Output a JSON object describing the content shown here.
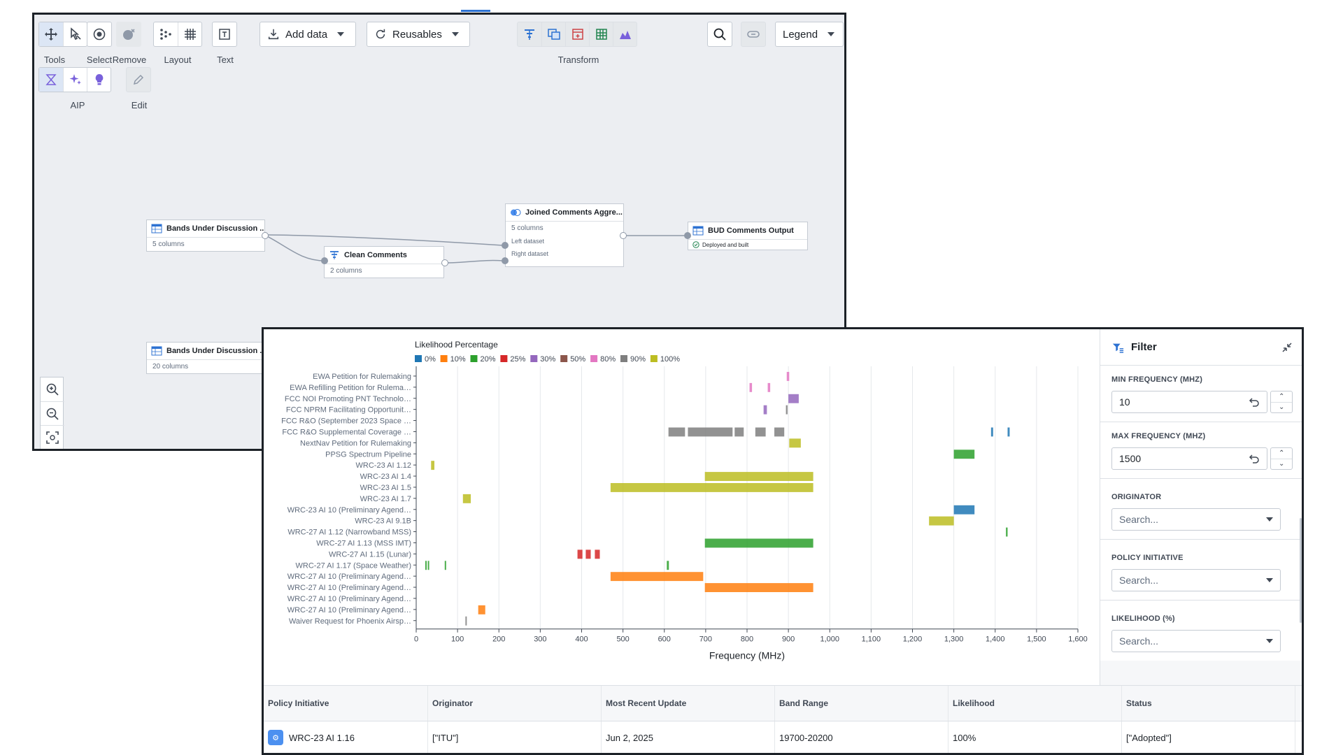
{
  "toolbar": {
    "groups": [
      {
        "label": "Tools"
      },
      {
        "label": "Select"
      },
      {
        "label": "Remove"
      },
      {
        "label": "Layout"
      },
      {
        "label": "Text"
      },
      {
        "label": "Transform"
      },
      {
        "label": "AIP"
      },
      {
        "label": "Edit"
      }
    ],
    "add_data": "Add data",
    "reusables": "Reusables",
    "legend": "Legend"
  },
  "graph": {
    "nodes": [
      {
        "id": "bands1",
        "title": "Bands Under Discussion ...",
        "sub": "5 columns"
      },
      {
        "id": "clean",
        "title": "Clean Comments",
        "sub": "2 columns"
      },
      {
        "id": "joined",
        "title": "Joined Comments Aggre...",
        "sub": "5 columns",
        "ports": [
          "Left dataset",
          "Right dataset"
        ]
      },
      {
        "id": "output",
        "title": "BUD Comments Output",
        "sub": "Deployed and built"
      },
      {
        "id": "bands2",
        "title": "Bands Under Discussion ...",
        "sub": "20 columns"
      }
    ]
  },
  "chart_data": {
    "type": "bar",
    "orientation": "horizontal-ranges",
    "legend_title": "Likelihood Percentage",
    "xlabel": "Frequency (MHz)",
    "xlim": [
      0,
      1600
    ],
    "xticks": [
      "0",
      "100",
      "200",
      "300",
      "400",
      "500",
      "600",
      "700",
      "800",
      "900",
      "1,000",
      "1,100",
      "1,200",
      "1,300",
      "1,400",
      "1,500",
      "1,600"
    ],
    "legend": [
      {
        "label": "0%",
        "color": "#1f77b4"
      },
      {
        "label": "10%",
        "color": "#ff7f0e"
      },
      {
        "label": "20%",
        "color": "#2ca02c"
      },
      {
        "label": "25%",
        "color": "#d62728"
      },
      {
        "label": "30%",
        "color": "#9467bd"
      },
      {
        "label": "50%",
        "color": "#8c564b"
      },
      {
        "label": "80%",
        "color": "#e377c2"
      },
      {
        "label": "90%",
        "color": "#7f7f7f"
      },
      {
        "label": "100%",
        "color": "#bcbd22"
      }
    ],
    "categories": [
      "EWA Petition for Rulemaking",
      "EWA Refilling Petition for Rulema…",
      "FCC NOI Promoting PNT Technolo…",
      "FCC NPRM Facilitating Opportunit…",
      "FCC R&O (September 2023 Space …",
      "FCC R&O Supplemental Coverage …",
      "NextNav Petition for Rulemaking",
      "PPSG Spectrum Pipeline",
      "WRC-23 AI 1.12",
      "WRC-23 AI 1.4",
      "WRC-23 AI 1.5",
      "WRC-23 AI 1.7",
      "WRC-23 AI 10 (Preliminary Agend…",
      "WRC-23 AI 9.1B",
      "WRC-27 AI 1.12 (Narrowband MSS)",
      "WRC-27 AI 1.13 (MSS IMT)",
      "WRC-27 AI 1.15 (Lunar)",
      "WRC-27 AI 1.17 (Space Weather)",
      "WRC-27 AI 10 (Preliminary Agend…",
      "WRC-27 AI 10 (Preliminary Agend…",
      "WRC-27 AI 10 (Preliminary Agend…",
      "WRC-27 AI 10 (Preliminary Agend…",
      "Waiver Request for Phoenix Airsp…"
    ],
    "ranges": [
      {
        "row": 0,
        "start": 896,
        "end": 902,
        "likelihood": "80%"
      },
      {
        "row": 1,
        "start": 806,
        "end": 812,
        "likelihood": "80%"
      },
      {
        "row": 1,
        "start": 850,
        "end": 856,
        "likelihood": "80%"
      },
      {
        "row": 2,
        "start": 900,
        "end": 925,
        "likelihood": "30%"
      },
      {
        "row": 3,
        "start": 840,
        "end": 848,
        "likelihood": "30%"
      },
      {
        "row": 3,
        "start": 894,
        "end": 898,
        "likelihood": "90%"
      },
      {
        "row": 5,
        "start": 610,
        "end": 650,
        "likelihood": "90%"
      },
      {
        "row": 5,
        "start": 657,
        "end": 765,
        "likelihood": "90%"
      },
      {
        "row": 5,
        "start": 770,
        "end": 792,
        "likelihood": "90%"
      },
      {
        "row": 5,
        "start": 820,
        "end": 845,
        "likelihood": "90%"
      },
      {
        "row": 5,
        "start": 866,
        "end": 890,
        "likelihood": "90%"
      },
      {
        "row": 5,
        "start": 1390,
        "end": 1395,
        "likelihood": "0%"
      },
      {
        "row": 5,
        "start": 1430,
        "end": 1435,
        "likelihood": "0%"
      },
      {
        "row": 6,
        "start": 902,
        "end": 930,
        "likelihood": "100%"
      },
      {
        "row": 7,
        "start": 1300,
        "end": 1350,
        "likelihood": "20%"
      },
      {
        "row": 8,
        "start": 36,
        "end": 44,
        "likelihood": "100%"
      },
      {
        "row": 9,
        "start": 698,
        "end": 960,
        "likelihood": "100%"
      },
      {
        "row": 10,
        "start": 470,
        "end": 960,
        "likelihood": "100%"
      },
      {
        "row": 11,
        "start": 113,
        "end": 132,
        "likelihood": "100%"
      },
      {
        "row": 12,
        "start": 1300,
        "end": 1350,
        "likelihood": "0%"
      },
      {
        "row": 13,
        "start": 1240,
        "end": 1300,
        "likelihood": "100%"
      },
      {
        "row": 14,
        "start": 1426,
        "end": 1430,
        "likelihood": "20%"
      },
      {
        "row": 15,
        "start": 698,
        "end": 960,
        "likelihood": "20%"
      },
      {
        "row": 16,
        "start": 390,
        "end": 402,
        "likelihood": "25%"
      },
      {
        "row": 16,
        "start": 410,
        "end": 422,
        "likelihood": "25%"
      },
      {
        "row": 16,
        "start": 432,
        "end": 444,
        "likelihood": "25%"
      },
      {
        "row": 17,
        "start": 22,
        "end": 25,
        "likelihood": "20%"
      },
      {
        "row": 17,
        "start": 28,
        "end": 31,
        "likelihood": "20%"
      },
      {
        "row": 17,
        "start": 69,
        "end": 72,
        "likelihood": "20%"
      },
      {
        "row": 17,
        "start": 606,
        "end": 611,
        "likelihood": "20%"
      },
      {
        "row": 18,
        "start": 470,
        "end": 694,
        "likelihood": "10%"
      },
      {
        "row": 19,
        "start": 698,
        "end": 960,
        "likelihood": "10%"
      },
      {
        "row": 21,
        "start": 150,
        "end": 167,
        "likelihood": "10%"
      },
      {
        "row": 22,
        "start": 119,
        "end": 122,
        "likelihood": "90%"
      }
    ]
  },
  "filter": {
    "title": "Filter",
    "min_label": "MIN FREQUENCY (MHZ)",
    "min_value": "10",
    "max_label": "MAX FREQUENCY (MHZ)",
    "max_value": "1500",
    "originator_label": "ORIGINATOR",
    "policy_label": "POLICY INITIATIVE",
    "likelihood_label": "LIKELIHOOD (%)",
    "search_placeholder": "Search..."
  },
  "table": {
    "headers": [
      "Policy Initiative",
      "Originator",
      "Most Recent Update",
      "Band Range",
      "Likelihood",
      "Status"
    ],
    "rows": [
      [
        "WRC-23 AI 1.16",
        "[\"ITU\"]",
        "Jun 2, 2025",
        "19700-20200",
        "100%",
        "[\"Adopted\"]"
      ]
    ]
  }
}
